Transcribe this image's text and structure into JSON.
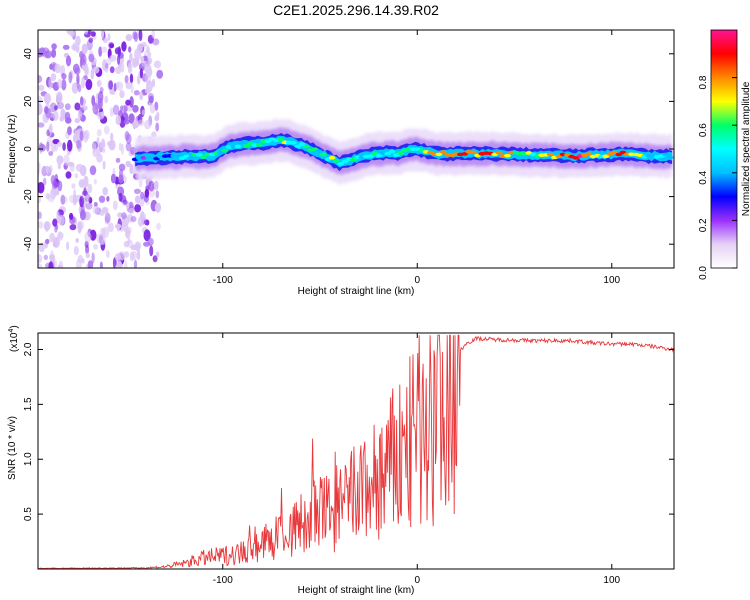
{
  "title": "C2E1.2025.296.14.39.R02",
  "chart_data": [
    {
      "type": "heatmap",
      "name": "spectrogram",
      "xlabel": "Height of straight line (km)",
      "ylabel": "Frequency (Hz)",
      "xlim": [
        -195,
        132
      ],
      "ylim": [
        -50,
        50
      ],
      "xticks": [
        -100,
        0,
        100
      ],
      "xtick_labels": [
        "-100",
        "0",
        "100"
      ],
      "yticks": [
        -40,
        -20,
        0,
        20,
        40
      ],
      "ytick_labels": [
        "-40",
        "-20",
        "0",
        "20",
        "40"
      ],
      "colorbar": {
        "label": "Normalized spectral amplitude",
        "range": [
          0,
          1
        ],
        "ticks": [
          0.0,
          0.2,
          0.4,
          0.6,
          0.8
        ],
        "tick_labels": [
          "0.0",
          "0.2",
          "0.4",
          "0.6",
          "0.8"
        ],
        "colors": [
          "#ffffff",
          "#e6d2f5",
          "#9b30ff",
          "#0000ff",
          "#00bfff",
          "#00ffff",
          "#00ff66",
          "#ffff00",
          "#ff8800",
          "#ff0000",
          "#ff1493"
        ]
      },
      "ridge": {
        "x": [
          -145,
          -130,
          -115,
          -105,
          -97,
          -90,
          -80,
          -70,
          -60,
          -52,
          -45,
          -40,
          -35,
          -30,
          -25,
          -20,
          -15,
          -10,
          -5,
          0,
          10,
          20,
          40,
          60,
          80,
          95,
          105,
          120,
          132
        ],
        "freq": [
          -4,
          -3.5,
          -3,
          -3,
          1,
          2,
          2.5,
          4,
          1.5,
          -1,
          -4,
          -6,
          -5,
          -3.5,
          -2.5,
          -2,
          -1.5,
          -2,
          -0.5,
          0,
          -2,
          -2,
          -2,
          -2.5,
          -3,
          -2.5,
          -2,
          -3,
          -3
        ],
        "strength": [
          0.3,
          0.35,
          0.5,
          0.55,
          0.5,
          0.5,
          0.55,
          0.6,
          0.55,
          0.5,
          0.6,
          0.55,
          0.5,
          0.5,
          0.5,
          0.5,
          0.5,
          0.55,
          0.55,
          0.55,
          0.75,
          0.8,
          0.8,
          0.6,
          0.95,
          0.6,
          0.95,
          0.5,
          0.4
        ]
      }
    },
    {
      "type": "line",
      "name": "snr",
      "xlabel": "Height of straight line (km)",
      "ylabel": "SNR (10 * v/v)",
      "scale_label": "(x10",
      "scale_exp": "4",
      "scale_close": ")",
      "xlim": [
        -195,
        132
      ],
      "ylim": [
        0,
        2.15
      ],
      "xticks": [
        -100,
        0,
        100
      ],
      "xtick_labels": [
        "-100",
        "0",
        "100"
      ],
      "yticks": [
        0.5,
        1.0,
        1.5,
        2.0
      ],
      "ytick_labels": [
        "0.5",
        "1.0",
        "1.5",
        "2.0"
      ],
      "color": "#e8383b",
      "envelope": {
        "x": [
          -195,
          -140,
          -130,
          -120,
          -110,
          -100,
          -90,
          -80,
          -70,
          -60,
          -50,
          -40,
          -30,
          -20,
          -10,
          0,
          5,
          10,
          15,
          20,
          25,
          30,
          40,
          60,
          80,
          90,
          100,
          110,
          120,
          132
        ],
        "y": [
          0.005,
          0.01,
          0.02,
          0.05,
          0.1,
          0.12,
          0.15,
          0.22,
          0.3,
          0.4,
          0.5,
          0.55,
          0.7,
          0.8,
          1.0,
          1.2,
          1.4,
          1.55,
          1.8,
          1.95,
          2.05,
          2.1,
          2.09,
          2.08,
          2.08,
          2.06,
          2.05,
          2.05,
          2.03,
          2.0
        ]
      }
    }
  ]
}
